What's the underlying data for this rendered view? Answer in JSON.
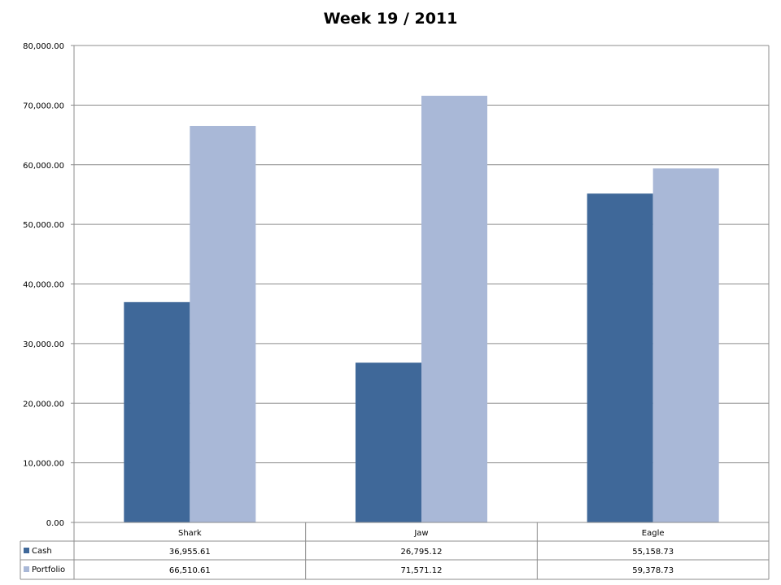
{
  "chart_data": {
    "type": "bar",
    "title": "Week 19 / 2011",
    "categories": [
      "Shark",
      "Jaw",
      "Eagle"
    ],
    "series": [
      {
        "name": "Cash",
        "values": [
          36955.61,
          26795.12,
          55158.73
        ],
        "color": "#3f6899",
        "labels": [
          "36,955.61",
          "26,795.12",
          "55,158.73"
        ]
      },
      {
        "name": "Portfolio",
        "values": [
          66510.61,
          71571.12,
          59378.73
        ],
        "color": "#a9b8d7",
        "labels": [
          "66,510.61",
          "71,571.12",
          "59,378.73"
        ]
      }
    ],
    "ylim": [
      0,
      80000
    ],
    "yticks": [
      0,
      10000,
      20000,
      30000,
      40000,
      50000,
      60000,
      70000,
      80000
    ],
    "ytick_labels": [
      "0.00",
      "10,000.00",
      "20,000.00",
      "30,000.00",
      "40,000.00",
      "50,000.00",
      "60,000.00",
      "70,000.00",
      "80,000.00"
    ],
    "grid": true,
    "legend": "data-table-below"
  }
}
